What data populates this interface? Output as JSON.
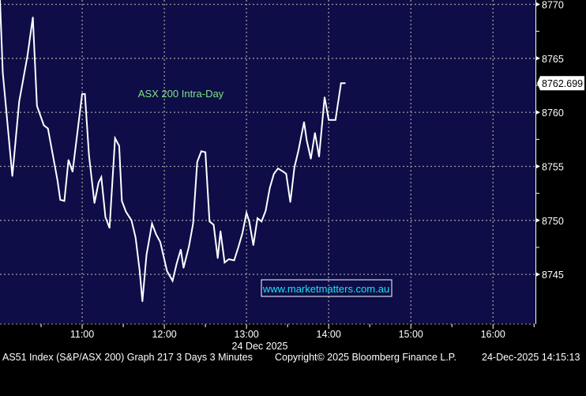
{
  "chart_data": {
    "type": "line",
    "title": "ASX 200 Intra-Day",
    "watermark": "www.marketmatters.com.au",
    "date_label": "24 Dec 2025",
    "last_value_label": "8762.699",
    "xlim": [
      "10:00",
      "16:31"
    ],
    "ylim": [
      8740.4,
      8770.4
    ],
    "x_ticks": [
      "11:00",
      "12:00",
      "13:00",
      "14:00",
      "15:00",
      "16:00"
    ],
    "y_ticks": [
      "8745",
      "8750",
      "8755",
      "8760",
      "8765",
      "8770"
    ],
    "grid": true,
    "y_axis_side": "right",
    "colors": {
      "background": "#0e0d48",
      "line": "#ffffff",
      "title": "#7fe47f",
      "watermark": "#19e3f0",
      "outer": "#000000"
    },
    "series": [
      {
        "x": [
          "10:00",
          "10:02",
          "10:09",
          "10:14",
          "10:20",
          "10:24",
          "10:27",
          "10:32",
          "10:35",
          "10:42",
          "10:44",
          "10:47",
          "10:50",
          "10:53",
          "11:00",
          "11:02",
          "11:05",
          "11:09",
          "11:12",
          "11:14",
          "11:17",
          "11:20",
          "11:24",
          "11:27",
          "11:29",
          "11:32",
          "11:36",
          "11:39",
          "11:42",
          "11:44",
          "11:47",
          "11:51",
          "11:54",
          "11:57",
          "12:02",
          "12:06",
          "12:09",
          "12:12",
          "12:14",
          "12:18",
          "12:21",
          "12:24",
          "12:27",
          "12:30",
          "12:33",
          "12:36",
          "12:39",
          "12:41",
          "12:44",
          "12:47",
          "12:51",
          "12:54",
          "12:57",
          "13:00",
          "13:02",
          "13:05",
          "13:08",
          "13:11",
          "13:14",
          "13:17",
          "13:20",
          "13:23",
          "13:27",
          "13:29",
          "13:32",
          "13:35",
          "13:38",
          "13:42",
          "13:44",
          "13:47",
          "13:50",
          "13:53",
          "13:57",
          "14:00",
          "14:05",
          "14:09",
          "14:12"
        ],
        "values": [
          8770.4,
          8763.7,
          8754.1,
          8761.0,
          8765.2,
          8768.8,
          8760.6,
          8758.8,
          8758.5,
          8753.7,
          8751.9,
          8751.8,
          8755.6,
          8754.5,
          8761.7,
          8761.7,
          8756.0,
          8751.6,
          8753.5,
          8754.0,
          8750.3,
          8749.3,
          8757.6,
          8756.9,
          8751.8,
          8750.8,
          8750.0,
          8748.4,
          8745.3,
          8742.5,
          8746.8,
          8749.7,
          8748.7,
          8748.0,
          8745.3,
          8744.4,
          8746.0,
          8747.3,
          8745.6,
          8747.6,
          8749.7,
          8755.4,
          8756.4,
          8756.3,
          8749.9,
          8749.6,
          8746.5,
          8749.0,
          8746.1,
          8746.4,
          8746.3,
          8747.5,
          8748.8,
          8750.7,
          8749.9,
          8747.7,
          8750.2,
          8749.9,
          8750.9,
          8753.0,
          8754.3,
          8754.8,
          8754.5,
          8754.3,
          8751.7,
          8754.9,
          8756.5,
          8759.1,
          8757.4,
          8755.7,
          8758.1,
          8755.9,
          8761.4,
          8759.3,
          8759.3,
          8762.7,
          8762.7
        ]
      }
    ]
  },
  "footer": {
    "left": "AS51 Index (S&P/ASX 200) Graph 217 3 Days 3 Minutes",
    "middle": "Copyright© 2025 Bloomberg Finance L.P.",
    "right": "24-Dec-2025 14:15:13"
  }
}
